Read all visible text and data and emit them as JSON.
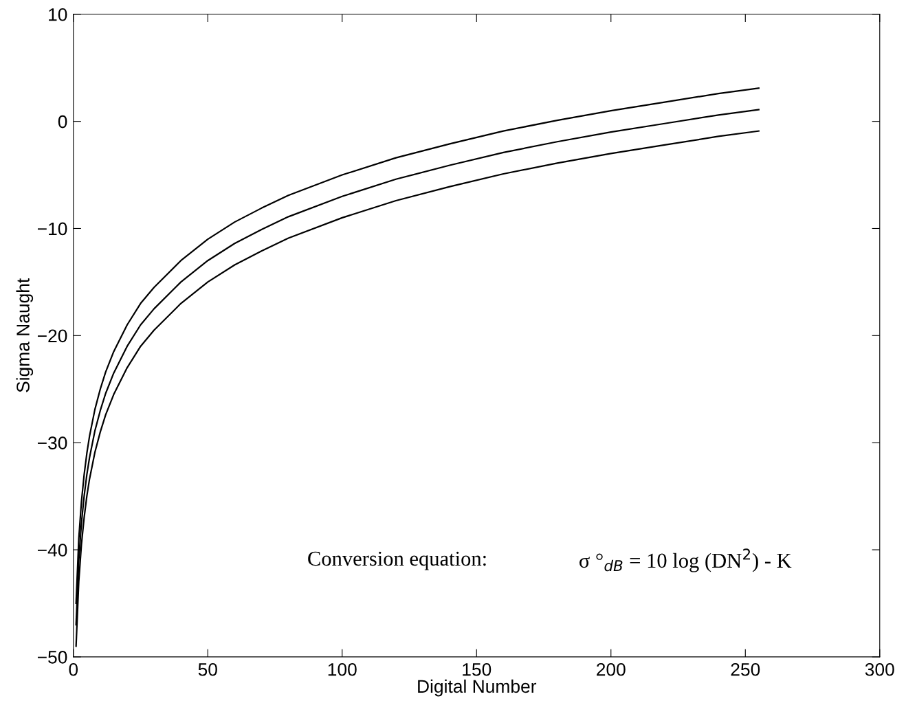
{
  "chart_data": {
    "type": "line",
    "xlabel": "Digital Number",
    "ylabel": "Sigma Naught",
    "x": [
      1,
      2,
      3,
      4,
      5,
      6,
      8,
      10,
      12,
      15,
      20,
      25,
      30,
      40,
      50,
      60,
      70,
      80,
      100,
      120,
      140,
      160,
      180,
      200,
      220,
      240,
      255
    ],
    "series": [
      {
        "color": "#000000",
        "values": [
          -45,
          -39,
          -35.5,
          -33,
          -31,
          -29.4,
          -26.9,
          -25,
          -23.4,
          -21.5,
          -19,
          -17,
          -15.5,
          -13,
          -11,
          -9.4,
          -8.1,
          -6.9,
          -5,
          -3.4,
          -2.1,
          -0.9,
          0.1,
          1,
          1.8,
          2.6,
          3.1
        ]
      },
      {
        "color": "#000000",
        "values": [
          -47,
          -41,
          -37.5,
          -35,
          -33,
          -31.4,
          -28.9,
          -27,
          -25.4,
          -23.5,
          -21,
          -19,
          -17.5,
          -15,
          -13,
          -11.4,
          -10.1,
          -8.9,
          -7,
          -5.4,
          -4.1,
          -2.9,
          -1.9,
          -1,
          -0.2,
          0.6,
          1.1
        ]
      },
      {
        "color": "#000000",
        "values": [
          -49,
          -43,
          -39.5,
          -37,
          -35,
          -33.4,
          -30.9,
          -29,
          -27.4,
          -25.5,
          -23,
          -21,
          -19.5,
          -17,
          -15,
          -13.4,
          -12.1,
          -10.9,
          -9,
          -7.4,
          -6.1,
          -4.9,
          -3.9,
          -3,
          -2.2,
          -1.4,
          -0.9
        ]
      }
    ],
    "xlim": [
      0,
      300
    ],
    "xticks": [
      0,
      50,
      100,
      150,
      200,
      250,
      300
    ],
    "ylim": [
      -50,
      10
    ],
    "yticks": [
      -50,
      -40,
      -30,
      -20,
      -10,
      0,
      10
    ],
    "annotations": [
      "Conversion equation:",
      "σ °$_{dB}$ = 10 log (DN$^{2}$) - K"
    ],
    "grid": false,
    "legend": false,
    "marker": "none",
    "line_style": "solid"
  }
}
